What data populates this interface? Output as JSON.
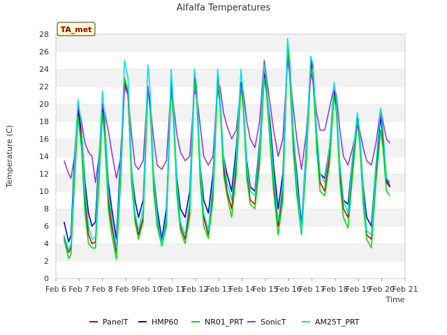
{
  "chart_data": {
    "type": "line",
    "title": "Alfalfa Temperatures",
    "xlabel": "Time",
    "ylabel": "Temperature (C)",
    "badge": "TA_met",
    "ylim": [
      0,
      28
    ],
    "yticks": [
      0,
      2,
      4,
      6,
      8,
      10,
      12,
      14,
      16,
      18,
      20,
      22,
      24,
      26,
      28
    ],
    "xlim": [
      6,
      21
    ],
    "xticks": [
      6,
      7,
      8,
      9,
      10,
      11,
      12,
      13,
      14,
      15,
      16,
      17,
      18,
      19,
      20,
      21
    ],
    "xtick_labels": [
      "Feb 6",
      "Feb 7",
      "Feb 8",
      "Feb 9",
      "Feb 10",
      "Feb 11",
      "Feb 12",
      "Feb 13",
      "Feb 14",
      "Feb 15",
      "Feb 16",
      "Feb 17",
      "Feb 18",
      "Feb 19",
      "Feb 20",
      "Feb 21"
    ],
    "grid": "horizontal bands",
    "legend_position": "bottom",
    "series": [
      {
        "name": "PanelT",
        "color": "#cc0000",
        "x": [
          6.35,
          6.55,
          6.65,
          6.8,
          6.95,
          7.1,
          7.25,
          7.4,
          7.55,
          7.7,
          7.85,
          8.0,
          8.1,
          8.25,
          8.4,
          8.6,
          8.8,
          8.95,
          9.1,
          9.25,
          9.4,
          9.55,
          9.75,
          9.95,
          10.05,
          10.2,
          10.35,
          10.55,
          10.75,
          10.95,
          11.05,
          11.2,
          11.35,
          11.55,
          11.75,
          11.95,
          12.05,
          12.2,
          12.35,
          12.55,
          12.75,
          12.95,
          13.05,
          13.2,
          13.35,
          13.55,
          13.75,
          13.95,
          14.05,
          14.2,
          14.35,
          14.55,
          14.75,
          14.95,
          15.05,
          15.2,
          15.35,
          15.55,
          15.75,
          15.95,
          16.05,
          16.2,
          16.35,
          16.55,
          16.75,
          16.95,
          17.05,
          17.2,
          17.35,
          17.55,
          17.75,
          17.95,
          18.05,
          18.2,
          18.35,
          18.55,
          18.75,
          18.95,
          19.05,
          19.2,
          19.35,
          19.55,
          19.75,
          19.95,
          20.05,
          20.2,
          20.35
        ],
        "y": [
          4.8,
          3.0,
          3.5,
          12.0,
          19.5,
          16.0,
          9.0,
          5.0,
          4.0,
          4.2,
          12.0,
          20.0,
          17.0,
          9.0,
          6.0,
          3.0,
          13.0,
          22.5,
          21.0,
          12.0,
          7.0,
          5.0,
          7.0,
          22.0,
          20.0,
          11.0,
          6.5,
          4.0,
          6.5,
          22.5,
          19.0,
          10.0,
          6.0,
          4.5,
          8.0,
          23.0,
          21.0,
          12.0,
          7.0,
          5.0,
          10.0,
          23.0,
          20.0,
          13.0,
          10.0,
          8.0,
          13.0,
          22.5,
          20.0,
          12.0,
          9.0,
          8.5,
          14.0,
          24.5,
          22.0,
          16.0,
          11.0,
          6.0,
          10.0,
          26.5,
          24.0,
          16.0,
          10.0,
          6.0,
          14.0,
          25.0,
          24.0,
          16.0,
          11.0,
          10.0,
          14.0,
          21.5,
          20.0,
          12.0,
          8.0,
          7.0,
          13.0,
          18.5,
          16.0,
          9.0,
          5.0,
          4.5,
          12.0,
          19.0,
          16.0,
          11.0,
          10.5
        ]
      },
      {
        "name": "HMP60",
        "color": "#0000cc",
        "x": [
          6.35,
          6.55,
          6.65,
          6.8,
          6.95,
          7.1,
          7.25,
          7.4,
          7.55,
          7.7,
          7.85,
          8.0,
          8.1,
          8.25,
          8.4,
          8.6,
          8.8,
          8.95,
          9.1,
          9.25,
          9.4,
          9.55,
          9.75,
          9.95,
          10.05,
          10.2,
          10.35,
          10.55,
          10.75,
          10.95,
          11.05,
          11.2,
          11.35,
          11.55,
          11.75,
          11.95,
          12.05,
          12.2,
          12.35,
          12.55,
          12.75,
          12.95,
          13.05,
          13.2,
          13.35,
          13.55,
          13.75,
          13.95,
          14.05,
          14.2,
          14.35,
          14.55,
          14.75,
          14.95,
          15.05,
          15.2,
          15.35,
          15.55,
          15.75,
          15.95,
          16.05,
          16.2,
          16.35,
          16.55,
          16.75,
          16.95,
          17.05,
          17.2,
          17.35,
          17.55,
          17.75,
          17.95,
          18.05,
          18.2,
          18.35,
          18.55,
          18.75,
          18.95,
          19.05,
          19.2,
          19.35,
          19.55,
          19.75,
          19.95,
          20.05,
          20.2,
          20.35
        ],
        "y": [
          6.5,
          4.2,
          5.0,
          14.0,
          19.5,
          17.0,
          11.0,
          7.5,
          6.0,
          6.5,
          14.0,
          19.5,
          18.0,
          11.0,
          8.0,
          4.5,
          15.0,
          22.0,
          21.0,
          12.5,
          9.0,
          7.0,
          9.0,
          22.0,
          19.5,
          12.0,
          8.0,
          4.5,
          8.0,
          22.0,
          18.5,
          11.5,
          8.0,
          7.0,
          10.0,
          22.5,
          20.5,
          13.0,
          9.0,
          7.5,
          12.0,
          22.0,
          20.0,
          14.0,
          12.0,
          10.0,
          15.0,
          22.5,
          20.0,
          13.5,
          10.5,
          10.0,
          15.5,
          23.5,
          21.5,
          18.0,
          13.0,
          8.0,
          12.0,
          26.0,
          23.5,
          16.5,
          12.0,
          6.0,
          15.0,
          24.5,
          22.5,
          16.0,
          12.0,
          11.5,
          15.0,
          21.5,
          19.5,
          13.0,
          9.0,
          8.5,
          14.0,
          18.5,
          16.5,
          10.5,
          7.0,
          6.0,
          13.0,
          18.5,
          16.5,
          11.5,
          10.5
        ]
      },
      {
        "name": "NR01_PRT",
        "color": "#00dd00",
        "x": [
          6.35,
          6.55,
          6.65,
          6.8,
          6.95,
          7.1,
          7.25,
          7.4,
          7.55,
          7.7,
          7.85,
          8.0,
          8.1,
          8.25,
          8.4,
          8.6,
          8.8,
          8.95,
          9.1,
          9.25,
          9.4,
          9.55,
          9.75,
          9.95,
          10.05,
          10.2,
          10.35,
          10.55,
          10.75,
          10.95,
          11.05,
          11.2,
          11.35,
          11.55,
          11.75,
          11.95,
          12.05,
          12.2,
          12.35,
          12.55,
          12.75,
          12.95,
          13.05,
          13.2,
          13.35,
          13.55,
          13.75,
          13.95,
          14.05,
          14.2,
          14.35,
          14.55,
          14.75,
          14.95,
          15.05,
          15.2,
          15.35,
          15.55,
          15.75,
          15.95,
          16.05,
          16.2,
          16.35,
          16.55,
          16.75,
          16.95,
          17.05,
          17.2,
          17.35,
          17.55,
          17.75,
          17.95,
          18.05,
          18.2,
          18.35,
          18.55,
          18.75,
          18.95,
          19.05,
          19.2,
          19.35,
          19.55,
          19.75,
          19.95,
          20.05,
          20.2,
          20.35
        ],
        "y": [
          4.5,
          2.3,
          2.8,
          11.0,
          18.5,
          15.0,
          7.5,
          4.0,
          3.5,
          3.5,
          11.0,
          19.0,
          16.0,
          8.0,
          5.0,
          2.2,
          12.0,
          23.0,
          21.5,
          11.0,
          6.5,
          4.5,
          6.5,
          22.0,
          20.0,
          10.0,
          6.0,
          3.7,
          6.0,
          22.0,
          18.5,
          9.5,
          5.5,
          4.0,
          7.0,
          22.5,
          20.5,
          11.0,
          6.0,
          4.6,
          9.0,
          22.5,
          20.0,
          12.0,
          9.5,
          7.0,
          12.0,
          22.0,
          19.5,
          11.5,
          8.5,
          8.0,
          13.0,
          23.0,
          21.0,
          15.5,
          10.0,
          5.0,
          9.0,
          26.5,
          23.0,
          14.5,
          9.5,
          5.0,
          13.0,
          24.0,
          23.0,
          15.0,
          10.0,
          9.5,
          13.0,
          21.0,
          19.0,
          11.0,
          7.0,
          5.8,
          12.0,
          18.0,
          15.5,
          8.5,
          4.5,
          3.5,
          11.0,
          17.0,
          15.0,
          10.0,
          9.5
        ]
      },
      {
        "name": "SonicT",
        "color": "#9933dd",
        "x": [
          6.35,
          6.55,
          6.65,
          6.8,
          6.95,
          7.1,
          7.25,
          7.4,
          7.55,
          7.7,
          7.85,
          8.0,
          8.1,
          8.25,
          8.4,
          8.6,
          8.8,
          8.95,
          9.1,
          9.25,
          9.4,
          9.55,
          9.75,
          9.95,
          10.05,
          10.2,
          10.35,
          10.55,
          10.75,
          10.95,
          11.05,
          11.2,
          11.35,
          11.55,
          11.75,
          11.95,
          12.05,
          12.2,
          12.35,
          12.55,
          12.75,
          12.95,
          13.05,
          13.2,
          13.35,
          13.55,
          13.75,
          13.95,
          14.05,
          14.2,
          14.35,
          14.55,
          14.75,
          14.95,
          15.05,
          15.2,
          15.35,
          15.55,
          15.75,
          15.95,
          16.05,
          16.2,
          16.35,
          16.55,
          16.75,
          16.95,
          17.05,
          17.2,
          17.35,
          17.55,
          17.75,
          17.95,
          18.05,
          18.2,
          18.35,
          18.55,
          18.75,
          18.95,
          19.05,
          19.2,
          19.35,
          19.55,
          19.75,
          19.95,
          20.05,
          20.2,
          20.35
        ],
        "y": [
          13.5,
          12.0,
          11.5,
          14.0,
          20.0,
          18.0,
          15.5,
          14.5,
          14.0,
          11.0,
          14.0,
          20.0,
          19.0,
          17.0,
          14.5,
          11.5,
          14.0,
          22.0,
          21.0,
          16.5,
          13.0,
          12.5,
          13.5,
          22.0,
          20.0,
          16.0,
          13.0,
          12.5,
          13.5,
          22.0,
          20.0,
          16.5,
          14.5,
          13.5,
          14.0,
          21.5,
          21.0,
          17.5,
          14.0,
          13.0,
          14.0,
          22.5,
          22.0,
          19.0,
          17.5,
          16.0,
          17.0,
          22.0,
          21.5,
          18.0,
          16.0,
          15.0,
          18.0,
          25.0,
          23.0,
          20.0,
          17.0,
          14.0,
          16.0,
          25.0,
          23.5,
          19.5,
          16.0,
          12.5,
          16.5,
          23.5,
          22.5,
          19.0,
          17.0,
          17.0,
          19.5,
          22.0,
          21.0,
          17.0,
          14.0,
          13.0,
          15.0,
          17.5,
          17.0,
          15.0,
          13.5,
          13.0,
          15.5,
          19.5,
          18.0,
          16.0,
          15.5
        ]
      },
      {
        "name": "AM25T_PRT",
        "color": "#00e0e8",
        "x": [
          6.35,
          6.55,
          6.65,
          6.8,
          6.95,
          7.1,
          7.25,
          7.4,
          7.55,
          7.7,
          7.85,
          8.0,
          8.1,
          8.25,
          8.4,
          8.6,
          8.8,
          8.95,
          9.1,
          9.25,
          9.4,
          9.55,
          9.75,
          9.95,
          10.05,
          10.2,
          10.35,
          10.55,
          10.75,
          10.95,
          11.05,
          11.2,
          11.35,
          11.55,
          11.75,
          11.95,
          12.05,
          12.2,
          12.35,
          12.55,
          12.75,
          12.95,
          13.05,
          13.2,
          13.35,
          13.55,
          13.75,
          13.95,
          14.05,
          14.2,
          14.35,
          14.55,
          14.75,
          14.95,
          15.05,
          15.2,
          15.35,
          15.55,
          15.75,
          15.95,
          16.05,
          16.2,
          16.35,
          16.55,
          16.75,
          16.95,
          17.05,
          17.2,
          17.35,
          17.55,
          17.75,
          17.95,
          18.05,
          18.2,
          18.35,
          18.55,
          18.75,
          18.95,
          19.05,
          19.2,
          19.35,
          19.55,
          19.75,
          19.95,
          20.05,
          20.2,
          20.35
        ],
        "y": [
          5.0,
          3.2,
          4.0,
          13.0,
          20.5,
          17.5,
          10.0,
          6.0,
          4.5,
          4.8,
          13.5,
          21.5,
          18.5,
          10.0,
          7.0,
          3.5,
          14.0,
          25.0,
          23.0,
          13.0,
          7.5,
          5.5,
          8.0,
          24.5,
          21.5,
          12.0,
          7.0,
          4.0,
          7.0,
          24.0,
          20.0,
          11.0,
          6.5,
          5.0,
          9.0,
          24.0,
          22.0,
          13.0,
          7.5,
          5.5,
          11.0,
          24.0,
          21.0,
          14.0,
          11.0,
          9.0,
          14.0,
          24.0,
          21.0,
          13.0,
          10.0,
          9.5,
          15.0,
          24.5,
          22.5,
          17.0,
          12.0,
          6.5,
          11.0,
          27.5,
          25.0,
          17.0,
          11.0,
          5.5,
          15.0,
          25.5,
          24.5,
          17.0,
          12.0,
          11.0,
          15.0,
          22.5,
          20.5,
          13.0,
          9.0,
          7.5,
          14.0,
          19.0,
          17.0,
          10.0,
          5.5,
          5.0,
          13.0,
          19.5,
          17.0,
          11.5,
          11.0
        ]
      }
    ]
  }
}
